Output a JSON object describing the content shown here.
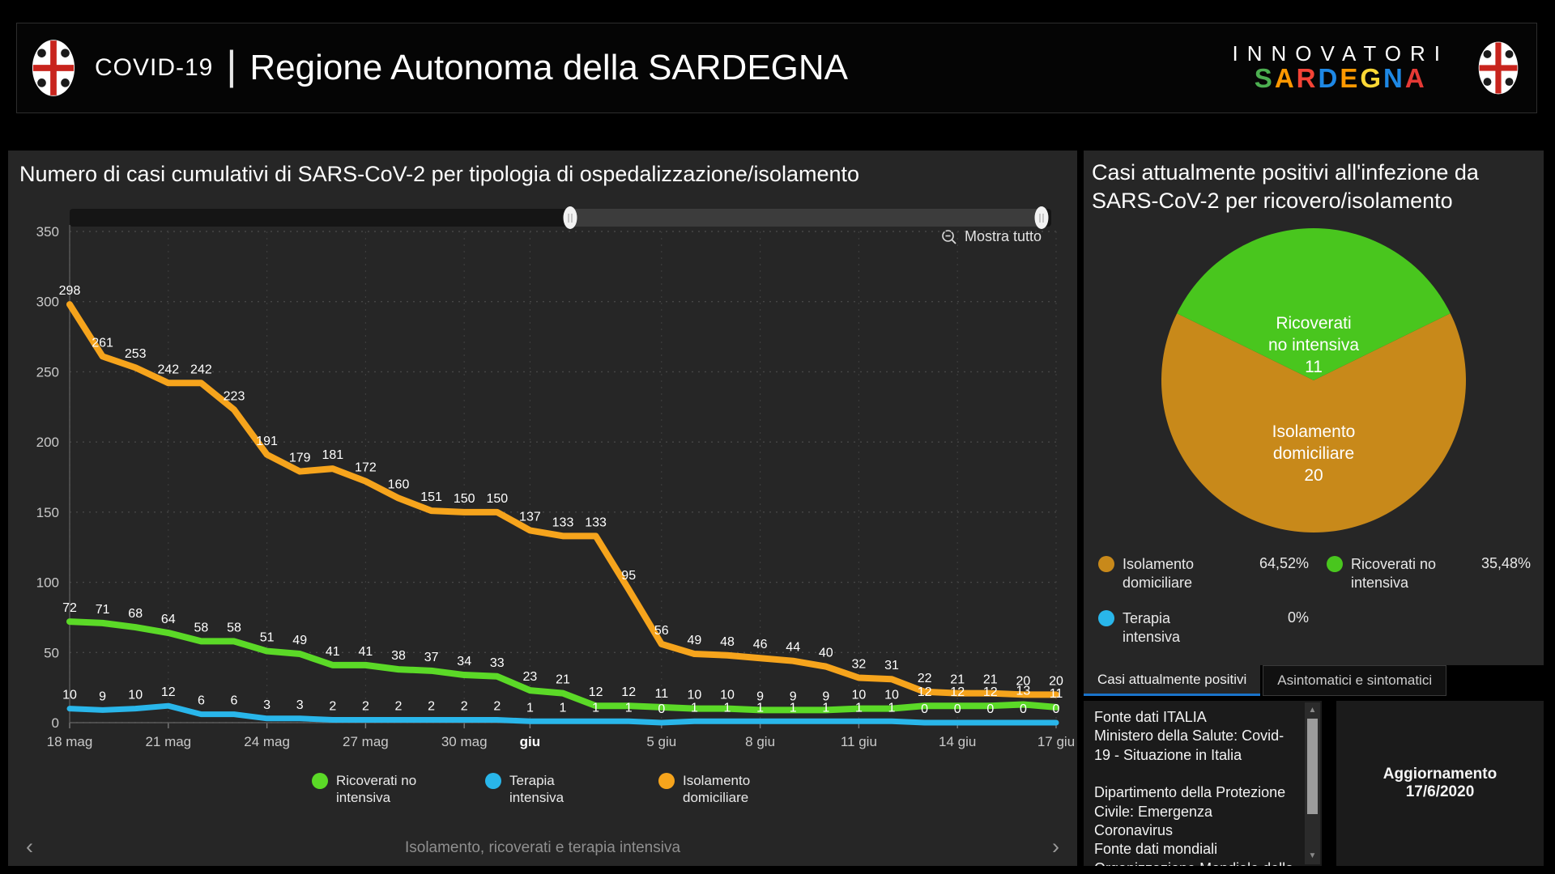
{
  "header": {
    "covid": "COVID-19",
    "region_title": "Regione Autonoma della SARDEGNA",
    "brand_top": "INNOVATORI",
    "brand_letters": [
      {
        "ch": "S",
        "color": "#4caf50"
      },
      {
        "ch": "A",
        "color": "#ff9800"
      },
      {
        "ch": "R",
        "color": "#f44336"
      },
      {
        "ch": "D",
        "color": "#1e88e5"
      },
      {
        "ch": "E",
        "color": "#ff9800"
      },
      {
        "ch": "G",
        "color": "#fdd835"
      },
      {
        "ch": "N",
        "color": "#1e88e5"
      },
      {
        "ch": "A",
        "color": "#e53935"
      }
    ]
  },
  "line_panel": {
    "title": "Numero di casi cumulativi di SARS-CoV-2 per tipologia di ospedalizzazione/isolamento",
    "show_all_label": "Mostra tutto",
    "caption": "Isolamento, ricoverati e terapia intensiva",
    "prev_arrow": "‹",
    "next_arrow": "›",
    "slider": {
      "start_pct": 51,
      "end_pct": 99
    }
  },
  "pie_panel": {
    "title": "Casi attualmente positivi all'infezione da SARS-CoV-2 per ricovero/isolamento",
    "tabs": [
      {
        "label": "Casi attualmente positivi",
        "active": true
      },
      {
        "label": "Asintomatici e sintomatici",
        "active": false
      }
    ]
  },
  "sources": {
    "p1": "Fonte dati ITALIA\nMinistero della Salute: Covid-19 - Situazione in Italia",
    "p2": "Dipartimento della Protezione Civile: Emergenza Coronavirus\nFonte dati mondiali\nOrganizzazione Mondiale della Sanità"
  },
  "update": {
    "label": "Aggiornamento 17/6/2020"
  },
  "chart_data": [
    {
      "type": "line",
      "title": "Numero di casi cumulativi di SARS-CoV-2 per tipologia di ospedalizzazione/isolamento",
      "categories": [
        "18 mag",
        "19 mag",
        "20 mag",
        "21 mag",
        "22 mag",
        "23 mag",
        "24 mag",
        "25 mag",
        "26 mag",
        "27 mag",
        "28 mag",
        "29 mag",
        "30 mag",
        "31 mag",
        "1 giu",
        "2 giu",
        "3 giu",
        "4 giu",
        "5 giu",
        "6 giu",
        "7 giu",
        "8 giu",
        "9 giu",
        "10 giu",
        "11 giu",
        "12 giu",
        "13 giu",
        "14 giu",
        "15 giu",
        "16 giu",
        "17 giu"
      ],
      "xticks": [
        {
          "i": 0,
          "l": "18 mag"
        },
        {
          "i": 3,
          "l": "21 mag"
        },
        {
          "i": 6,
          "l": "24 mag"
        },
        {
          "i": 9,
          "l": "27 mag"
        },
        {
          "i": 12,
          "l": "30 mag"
        },
        {
          "i": 14,
          "l": "giu",
          "bold": true
        },
        {
          "i": 18,
          "l": "5 giu"
        },
        {
          "i": 21,
          "l": "8 giu"
        },
        {
          "i": 24,
          "l": "11 giu"
        },
        {
          "i": 27,
          "l": "14 giu"
        },
        {
          "i": 30,
          "l": "17 giu"
        }
      ],
      "ylim": [
        0,
        350
      ],
      "yticks": [
        0,
        50,
        100,
        150,
        200,
        250,
        300,
        350
      ],
      "grid": "dotted",
      "legend_position": "bottom",
      "series": [
        {
          "name": "Ricoverati no intensiva",
          "color": "#5bd927",
          "width": 8,
          "values": [
            72,
            71,
            68,
            64,
            58,
            58,
            51,
            49,
            41,
            41,
            38,
            37,
            34,
            33,
            23,
            21,
            12,
            12,
            11,
            10,
            10,
            9,
            9,
            9,
            10,
            10,
            12,
            12,
            12,
            13,
            11
          ]
        },
        {
          "name": "Terapia intensiva",
          "color": "#29b6ea",
          "width": 7,
          "values": [
            10,
            9,
            10,
            12,
            6,
            6,
            3,
            3,
            2,
            2,
            2,
            2,
            2,
            2,
            1,
            1,
            1,
            1,
            0,
            1,
            1,
            1,
            1,
            1,
            1,
            1,
            0,
            0,
            0,
            0,
            0
          ]
        },
        {
          "name": "Isolamento domiciliare",
          "color": "#f6a41c",
          "width": 8,
          "values": [
            298,
            261,
            253,
            242,
            242,
            223,
            191,
            179,
            181,
            172,
            160,
            151,
            150,
            150,
            137,
            133,
            133,
            95,
            56,
            49,
            48,
            46,
            44,
            40,
            32,
            31,
            22,
            21,
            21,
            20,
            20
          ]
        }
      ]
    },
    {
      "type": "pie",
      "title": "Casi attualmente positivi all'infezione da SARS-CoV-2 per ricovero/isolamento",
      "slices": [
        {
          "label": "Isolamento domiciliare",
          "label_lines": [
            "Isolamento",
            "domiciliare"
          ],
          "value": 20,
          "pct": "64,52%",
          "color": "#c8891a",
          "start_deg": 333.87,
          "sweep_deg": 232.26,
          "label_dy": 70
        },
        {
          "label": "Ricoverati no intensiva",
          "label_lines": [
            "Ricoverati",
            "no intensiva"
          ],
          "value": 11,
          "pct": "35,48%",
          "color": "#49c61e",
          "start_deg": 206.13,
          "sweep_deg": 127.74,
          "label_dy": -64
        },
        {
          "label": "Terapia intensiva",
          "label_lines": [
            "Terapia",
            "intensiva"
          ],
          "value": 0,
          "pct": "0%",
          "color": "#29b6ea"
        }
      ]
    }
  ]
}
